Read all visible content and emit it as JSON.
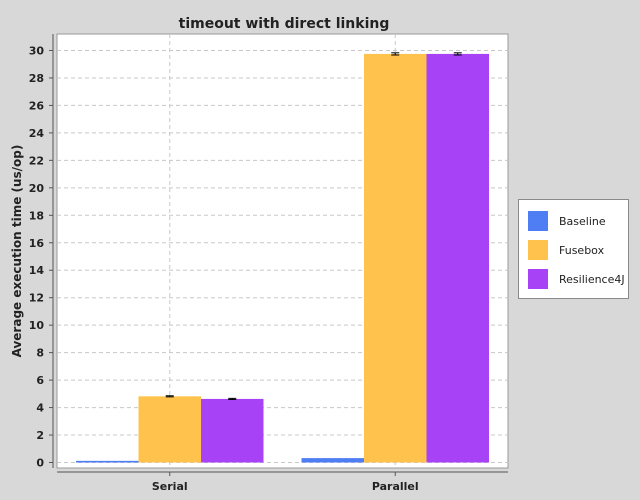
{
  "chart_data": {
    "type": "bar",
    "title": "timeout with direct linking",
    "xlabel": "",
    "ylabel": "Average execution time (us/op)",
    "categories": [
      "Serial",
      "Parallel"
    ],
    "series": [
      {
        "name": "Baseline",
        "values": [
          0.12,
          0.32
        ],
        "errors": [
          0,
          0
        ],
        "color": "#4f7df3"
      },
      {
        "name": "Fusebox",
        "values": [
          4.82,
          29.75
        ],
        "errors": [
          0.04,
          0.08
        ],
        "color": "#ffc34d"
      },
      {
        "name": "Resilience4J",
        "values": [
          4.63,
          29.75
        ],
        "errors": [
          0.04,
          0.08
        ],
        "color": "#a742f7"
      }
    ],
    "ylim": [
      -0.4,
      31.2
    ],
    "yticks": [
      0,
      2,
      4,
      6,
      8,
      10,
      12,
      14,
      16,
      18,
      20,
      22,
      24,
      26,
      28,
      30
    ],
    "grid": true,
    "legend_position": "right"
  }
}
